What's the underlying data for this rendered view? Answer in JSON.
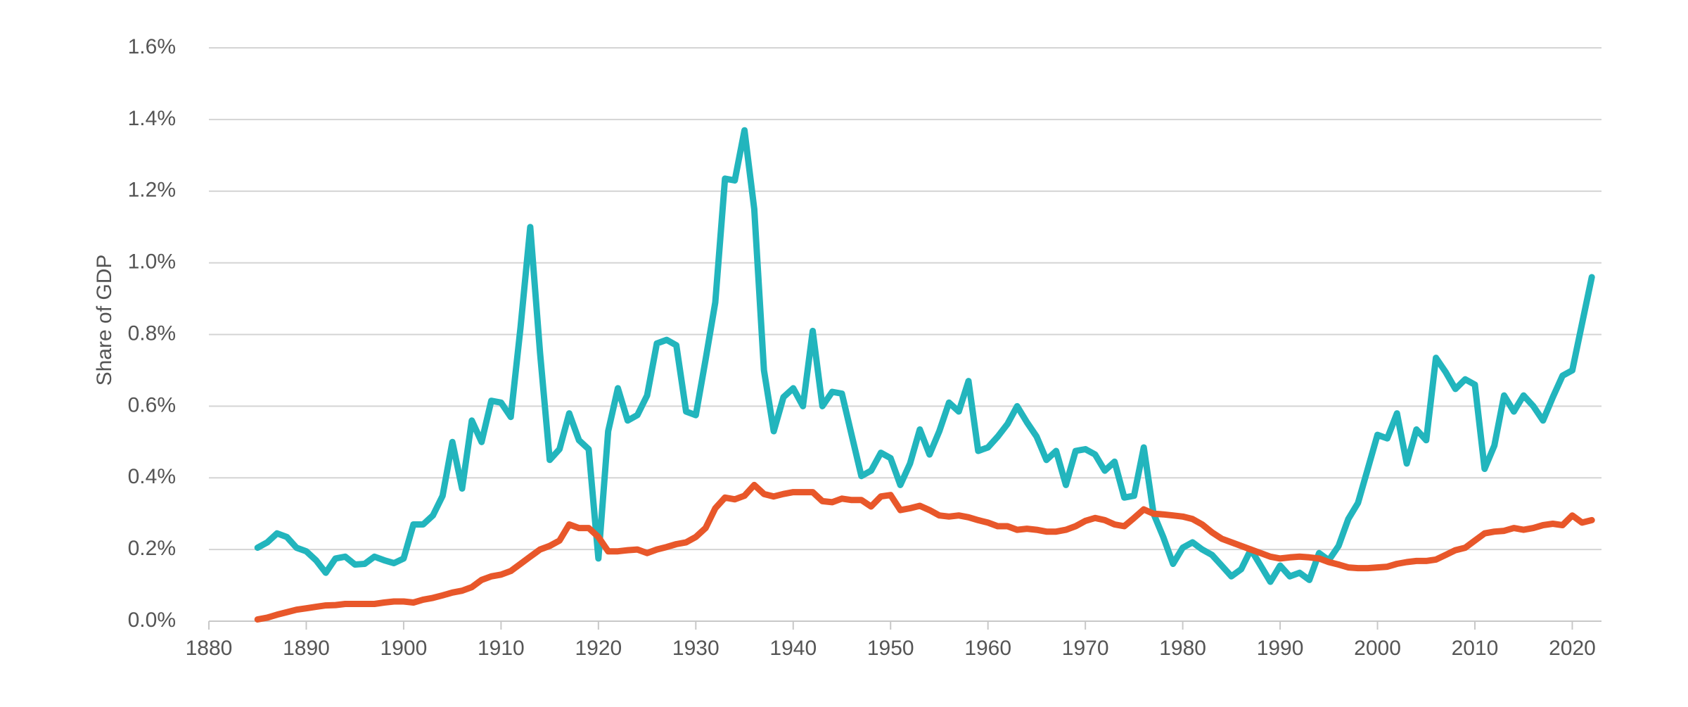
{
  "chart_data": {
    "type": "line",
    "title": "",
    "xlabel": "",
    "ylabel": "Share of GDP",
    "xlim": [
      1880,
      2023
    ],
    "ylim": [
      0,
      1.6
    ],
    "yticks": [
      0,
      0.2,
      0.4,
      0.6,
      0.8,
      1.0,
      1.2,
      1.4,
      1.6
    ],
    "ytick_labels": [
      "0.0%",
      "0.2%",
      "0.4%",
      "0.6%",
      "0.8%",
      "1.0%",
      "1.2%",
      "1.4%",
      "1.6%"
    ],
    "xticks": [
      1880,
      1890,
      1900,
      1910,
      1920,
      1930,
      1940,
      1950,
      1960,
      1970,
      1980,
      1990,
      2000,
      2010,
      2020
    ],
    "xtick_labels": [
      "1880",
      "1890",
      "1900",
      "1910",
      "1920",
      "1930",
      "1940",
      "1950",
      "1960",
      "1970",
      "1980",
      "1990",
      "2000",
      "2010",
      "2020"
    ],
    "grid": true,
    "legend": "none",
    "series": [
      {
        "name": "teal series",
        "color": "#22b5bd",
        "x": [
          1885,
          1886,
          1887,
          1888,
          1889,
          1890,
          1891,
          1892,
          1893,
          1894,
          1895,
          1896,
          1897,
          1898,
          1899,
          1900,
          1901,
          1902,
          1903,
          1904,
          1905,
          1906,
          1907,
          1908,
          1909,
          1910,
          1911,
          1912,
          1913,
          1914,
          1915,
          1916,
          1917,
          1918,
          1919,
          1920,
          1921,
          1922,
          1923,
          1924,
          1925,
          1926,
          1927,
          1928,
          1929,
          1930,
          1931,
          1932,
          1933,
          1934,
          1935,
          1936,
          1937,
          1938,
          1939,
          1940,
          1941,
          1942,
          1943,
          1944,
          1945,
          1946,
          1947,
          1948,
          1949,
          1950,
          1951,
          1952,
          1953,
          1954,
          1955,
          1956,
          1957,
          1958,
          1959,
          1960,
          1961,
          1962,
          1963,
          1964,
          1965,
          1966,
          1967,
          1968,
          1969,
          1970,
          1971,
          1972,
          1973,
          1974,
          1975,
          1976,
          1977,
          1978,
          1979,
          1980,
          1981,
          1982,
          1983,
          1984,
          1985,
          1986,
          1987,
          1988,
          1989,
          1990,
          1991,
          1992,
          1993,
          1994,
          1995,
          1996,
          1997,
          1998,
          1999,
          2000,
          2001,
          2002,
          2003,
          2004,
          2005,
          2006,
          2007,
          2008,
          2009,
          2010,
          2011,
          2012,
          2013,
          2014,
          2015,
          2016,
          2017,
          2018,
          2019,
          2020,
          2021,
          2022
        ],
        "values": [
          0.205,
          0.22,
          0.245,
          0.235,
          0.205,
          0.195,
          0.17,
          0.135,
          0.175,
          0.18,
          0.158,
          0.16,
          0.18,
          0.17,
          0.162,
          0.175,
          0.27,
          0.27,
          0.295,
          0.35,
          0.5,
          0.37,
          0.56,
          0.5,
          0.615,
          0.61,
          0.57,
          0.82,
          1.1,
          0.75,
          0.45,
          0.48,
          0.58,
          0.505,
          0.48,
          0.175,
          0.53,
          0.65,
          0.56,
          0.575,
          0.63,
          0.775,
          0.785,
          0.77,
          0.585,
          0.575,
          0.73,
          0.89,
          1.235,
          1.23,
          1.37,
          1.15,
          0.7,
          0.53,
          0.625,
          0.65,
          0.6,
          0.81,
          0.6,
          0.64,
          0.635,
          0.52,
          0.405,
          0.42,
          0.47,
          0.455,
          0.38,
          0.44,
          0.535,
          0.465,
          0.53,
          0.61,
          0.585,
          0.67,
          0.475,
          0.485,
          0.515,
          0.55,
          0.6,
          0.555,
          0.515,
          0.45,
          0.475,
          0.38,
          0.475,
          0.48,
          0.465,
          0.42,
          0.445,
          0.345,
          0.35,
          0.485,
          0.3,
          0.235,
          0.16,
          0.205,
          0.22,
          0.2,
          0.185,
          0.155,
          0.125,
          0.145,
          0.2,
          0.155,
          0.11,
          0.155,
          0.125,
          0.135,
          0.115,
          0.19,
          0.17,
          0.21,
          0.285,
          0.33,
          0.425,
          0.52,
          0.51,
          0.58,
          0.44,
          0.535,
          0.505,
          0.735,
          0.695,
          0.648,
          0.675,
          0.66,
          0.425,
          0.49,
          0.63,
          0.585,
          0.63,
          0.6,
          0.56,
          0.625,
          0.685,
          0.7,
          0.83,
          0.96
        ]
      },
      {
        "name": "orange series",
        "color": "#e8572a",
        "x": [
          1885,
          1886,
          1887,
          1888,
          1889,
          1890,
          1891,
          1892,
          1893,
          1894,
          1895,
          1896,
          1897,
          1898,
          1899,
          1900,
          1901,
          1902,
          1903,
          1904,
          1905,
          1906,
          1907,
          1908,
          1909,
          1910,
          1911,
          1912,
          1913,
          1914,
          1915,
          1916,
          1917,
          1918,
          1919,
          1920,
          1921,
          1922,
          1923,
          1924,
          1925,
          1926,
          1927,
          1928,
          1929,
          1930,
          1931,
          1932,
          1933,
          1934,
          1935,
          1936,
          1937,
          1938,
          1939,
          1940,
          1941,
          1942,
          1943,
          1944,
          1945,
          1946,
          1947,
          1948,
          1949,
          1950,
          1951,
          1952,
          1953,
          1954,
          1955,
          1956,
          1957,
          1958,
          1959,
          1960,
          1961,
          1962,
          1963,
          1964,
          1965,
          1966,
          1967,
          1968,
          1969,
          1970,
          1971,
          1972,
          1973,
          1974,
          1975,
          1976,
          1977,
          1978,
          1979,
          1980,
          1981,
          1982,
          1983,
          1984,
          1985,
          1986,
          1987,
          1988,
          1989,
          1990,
          1991,
          1992,
          1993,
          1994,
          1995,
          1996,
          1997,
          1998,
          1999,
          2000,
          2001,
          2002,
          2003,
          2004,
          2005,
          2006,
          2007,
          2008,
          2009,
          2010,
          2011,
          2012,
          2013,
          2014,
          2015,
          2016,
          2017,
          2018,
          2019,
          2020,
          2021,
          2022
        ],
        "values": [
          0.005,
          0.01,
          0.018,
          0.025,
          0.032,
          0.036,
          0.04,
          0.044,
          0.045,
          0.048,
          0.048,
          0.048,
          0.048,
          0.052,
          0.055,
          0.055,
          0.052,
          0.06,
          0.065,
          0.072,
          0.08,
          0.085,
          0.095,
          0.115,
          0.125,
          0.13,
          0.14,
          0.16,
          0.18,
          0.2,
          0.21,
          0.225,
          0.27,
          0.26,
          0.26,
          0.235,
          0.195,
          0.195,
          0.198,
          0.2,
          0.19,
          0.2,
          0.207,
          0.215,
          0.22,
          0.235,
          0.26,
          0.315,
          0.345,
          0.34,
          0.35,
          0.38,
          0.355,
          0.348,
          0.355,
          0.36,
          0.36,
          0.36,
          0.335,
          0.332,
          0.342,
          0.338,
          0.338,
          0.32,
          0.348,
          0.352,
          0.31,
          0.315,
          0.322,
          0.31,
          0.295,
          0.292,
          0.295,
          0.29,
          0.282,
          0.275,
          0.265,
          0.265,
          0.255,
          0.258,
          0.255,
          0.25,
          0.25,
          0.255,
          0.265,
          0.28,
          0.288,
          0.282,
          0.27,
          0.265,
          0.288,
          0.312,
          0.3,
          0.298,
          0.295,
          0.292,
          0.285,
          0.27,
          0.248,
          0.23,
          0.22,
          0.21,
          0.2,
          0.19,
          0.18,
          0.175,
          0.178,
          0.18,
          0.178,
          0.175,
          0.165,
          0.158,
          0.15,
          0.148,
          0.148,
          0.15,
          0.152,
          0.16,
          0.165,
          0.168,
          0.168,
          0.172,
          0.185,
          0.198,
          0.205,
          0.225,
          0.245,
          0.25,
          0.252,
          0.26,
          0.255,
          0.26,
          0.268,
          0.272,
          0.268,
          0.295,
          0.275,
          0.282
        ]
      }
    ]
  }
}
